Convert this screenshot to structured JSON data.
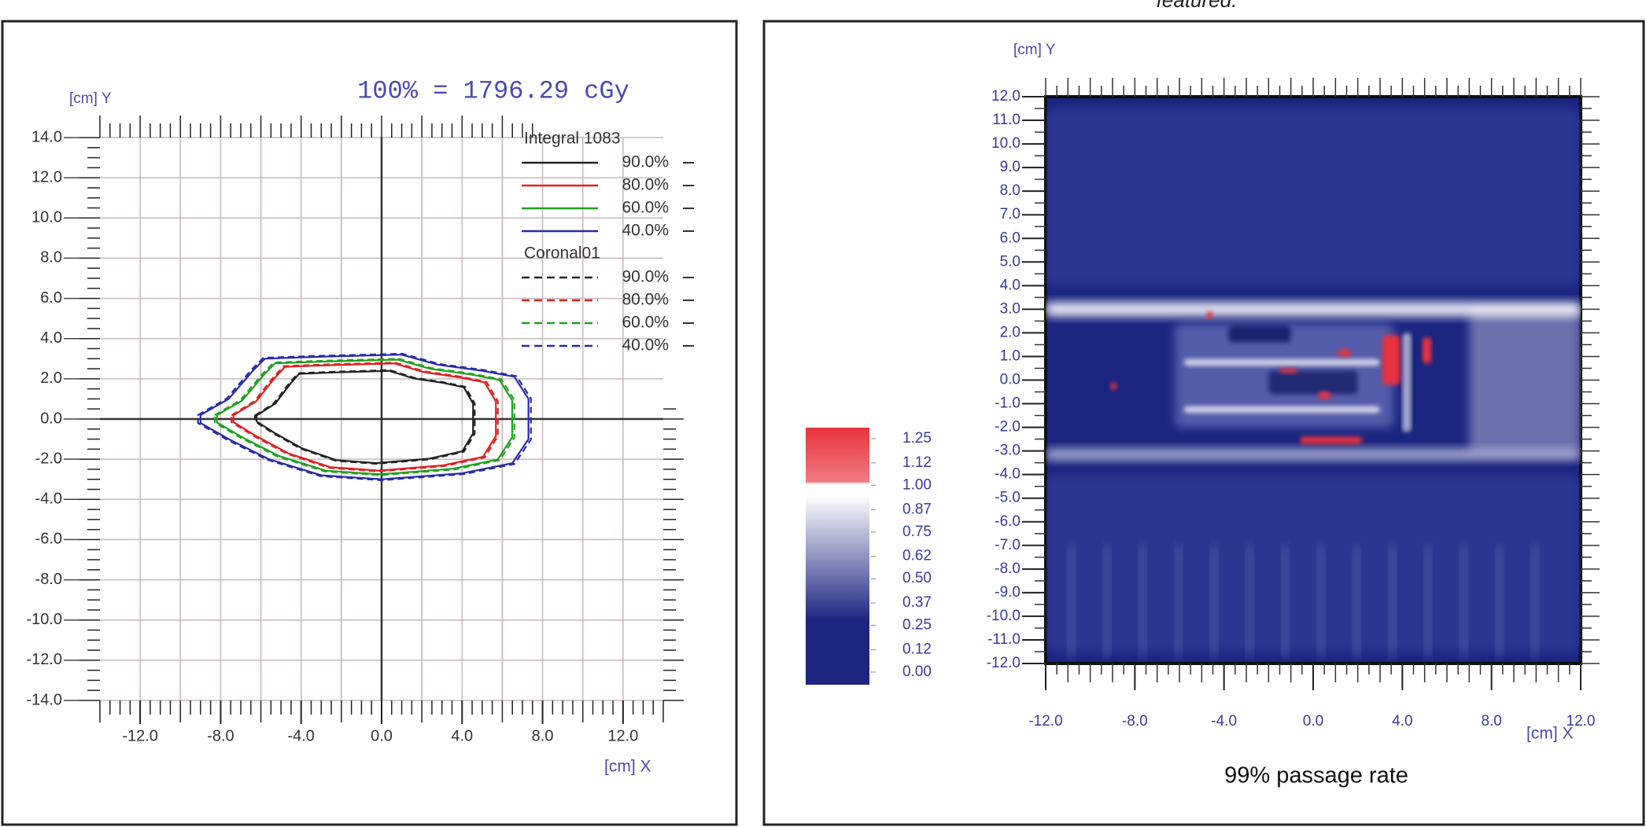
{
  "fragment": "featured.",
  "chart_data": [
    {
      "type": "contour",
      "title": "100% = 1796.29 cGy",
      "x_label": "[cm] X",
      "y_label": "[cm] Y",
      "xlim": [
        -14,
        14
      ],
      "ylim": [
        -14,
        14
      ],
      "grid": true,
      "xticks": [
        {
          "value": -12,
          "label": "-12.0"
        },
        {
          "value": -8,
          "label": "-8.0"
        },
        {
          "value": -4,
          "label": "-4.0"
        },
        {
          "value": 0,
          "label": "0.0"
        },
        {
          "value": 4,
          "label": "4.0"
        },
        {
          "value": 8,
          "label": "8.0"
        },
        {
          "value": 12,
          "label": "12.0"
        }
      ],
      "yticks": [
        {
          "value": 14,
          "label": "14.0"
        },
        {
          "value": 12,
          "label": "12.0"
        },
        {
          "value": 10,
          "label": "10.0"
        },
        {
          "value": 8,
          "label": "8.0"
        },
        {
          "value": 6,
          "label": "6.0"
        },
        {
          "value": 4,
          "label": "4.0"
        },
        {
          "value": 2,
          "label": "2.0"
        },
        {
          "value": 0,
          "label": "0.0"
        },
        {
          "value": -2,
          "label": "-2.0"
        },
        {
          "value": -4,
          "label": "-4.0"
        },
        {
          "value": -6,
          "label": "-6.0"
        },
        {
          "value": -8,
          "label": "-8.0"
        },
        {
          "value": -10,
          "label": "-10.0"
        },
        {
          "value": -12,
          "label": "-12.0"
        },
        {
          "value": -14,
          "label": "-14.0"
        }
      ],
      "legend_groups": [
        {
          "name": "Integral 1083",
          "dashed": false,
          "series": [
            {
              "name": "90.0%",
              "color": "#222222"
            },
            {
              "name": "80.0%",
              "color": "#e02020"
            },
            {
              "name": "60.0%",
              "color": "#20a020"
            },
            {
              "name": "40.0%",
              "color": "#2a2aa8"
            }
          ]
        },
        {
          "name": "Coronal01",
          "dashed": true,
          "series": [
            {
              "name": "90.0%",
              "color": "#222222"
            },
            {
              "name": "80.0%",
              "color": "#e02020"
            },
            {
              "name": "60.0%",
              "color": "#20a020"
            },
            {
              "name": "40.0%",
              "color": "#2a2aa8"
            }
          ]
        }
      ]
    },
    {
      "type": "heatmap",
      "x_label": "[cm] X",
      "y_label": "[cm] Y",
      "caption": "99% passage rate",
      "xlim": [
        -12,
        12
      ],
      "ylim": [
        -12,
        12
      ],
      "xticks": [
        {
          "value": -12,
          "label": "-12.0"
        },
        {
          "value": -8,
          "label": "-8.0"
        },
        {
          "value": -4,
          "label": "-4.0"
        },
        {
          "value": 0,
          "label": "0.0"
        },
        {
          "value": 4,
          "label": "4.0"
        },
        {
          "value": 8,
          "label": "8.0"
        },
        {
          "value": 12,
          "label": "12.0"
        }
      ],
      "yticks": [
        {
          "value": 12,
          "label": "12.0"
        },
        {
          "value": 11,
          "label": "11.0"
        },
        {
          "value": 10,
          "label": "10.0"
        },
        {
          "value": 9,
          "label": "9.0"
        },
        {
          "value": 8,
          "label": "8.0"
        },
        {
          "value": 7,
          "label": "7.0"
        },
        {
          "value": 6,
          "label": "6.0"
        },
        {
          "value": 5,
          "label": "5.0"
        },
        {
          "value": 4,
          "label": "4.0"
        },
        {
          "value": 3,
          "label": "3.0"
        },
        {
          "value": 2,
          "label": "2.0"
        },
        {
          "value": 1,
          "label": "1.0"
        },
        {
          "value": 0,
          "label": "0.0"
        },
        {
          "value": -1,
          "label": "-1.0"
        },
        {
          "value": -2,
          "label": "-2.0"
        },
        {
          "value": -3,
          "label": "-3.0"
        },
        {
          "value": -4,
          "label": "-4.0"
        },
        {
          "value": -5,
          "label": "-5.0"
        },
        {
          "value": -6,
          "label": "-6.0"
        },
        {
          "value": -7,
          "label": "-7.0"
        },
        {
          "value": -8,
          "label": "-8.0"
        },
        {
          "value": -9,
          "label": "-9.0"
        },
        {
          "value": -10,
          "label": "-10.0"
        },
        {
          "value": -11,
          "label": "-11.0"
        },
        {
          "value": -12,
          "label": "-12.0"
        }
      ],
      "colorbar": {
        "clim": [
          0,
          1.25
        ],
        "colors": [
          "#1c2580",
          "#ffffff",
          "#e8333c"
        ],
        "ticks": [
          1.25,
          1.12,
          {
            "value": 1,
            "label": "1.00"
          },
          0.87,
          0.75,
          0.62,
          {
            "value": 0.5,
            "label": "0.50"
          },
          0.37,
          0.25,
          0.12,
          {
            "value": 0,
            "label": "0.00"
          }
        ]
      }
    }
  ]
}
